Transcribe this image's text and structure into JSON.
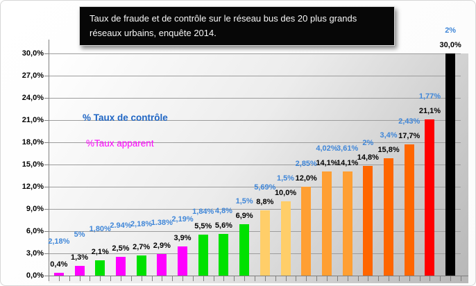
{
  "title": {
    "text": "Taux de fraude et de contrôle sur le réseau bus des 20 plus grands réseaux urbains, enquête 2014."
  },
  "legend": {
    "controle_label": "% Taux de contrôle",
    "apparent_label": "%Taux apparent",
    "controle_color": "#2066C4",
    "apparent_color": "#FF00FF"
  },
  "y_axis": {
    "tick_labels": [
      "30,0%",
      "27,0%",
      "24,0%",
      "21,0%",
      "18,0%",
      "15,0%",
      "12,0%",
      "9,0%",
      "6,0%",
      "3,0%",
      "0,0%"
    ]
  },
  "chart_data": {
    "type": "bar",
    "title": "Taux de fraude et de contrôle sur le réseau bus des 20 plus grands réseaux urbains, enquête 2014.",
    "xlabel": "",
    "ylabel": "",
    "ylim": [
      0,
      30
    ],
    "ytick_step": 3,
    "grid": true,
    "legend_position": "inside-top-left",
    "value_label_color": "#000000",
    "control_label_color": "#3F86D8",
    "series": [
      {
        "name": "%Taux apparent",
        "values": [
          0.4,
          1.3,
          2.1,
          2.5,
          2.7,
          2.9,
          3.9,
          5.5,
          5.6,
          6.9,
          8.8,
          10.0,
          12.0,
          14.1,
          14.1,
          14.8,
          15.8,
          17.7,
          21.1,
          30.0
        ]
      },
      {
        "name": "% Taux de contrôle",
        "values": [
          2.18,
          5,
          1.8,
          2.94,
          2.18,
          1.38,
          2.19,
          1.84,
          4.8,
          1.5,
          5.69,
          1.5,
          2.85,
          4.02,
          3.61,
          2,
          3.4,
          2.43,
          1.77,
          2
        ]
      }
    ],
    "bars": [
      {
        "value": 0.4,
        "value_label": "0,4%",
        "control_label": "2,18%",
        "color": "#FF00FF"
      },
      {
        "value": 1.3,
        "value_label": "1,3%",
        "control_label": "5%",
        "color": "#FF00FF"
      },
      {
        "value": 2.1,
        "value_label": "2,1%",
        "control_label": "1,80%",
        "color": "#00E100"
      },
      {
        "value": 2.5,
        "value_label": "2,5%",
        "control_label": "2.94%",
        "color": "#FF00FF"
      },
      {
        "value": 2.7,
        "value_label": "2,7%",
        "control_label": "2,18%",
        "color": "#00E100"
      },
      {
        "value": 2.9,
        "value_label": "2,9%",
        "control_label": "1.38%",
        "color": "#FF00FF"
      },
      {
        "value": 3.9,
        "value_label": "3,9%",
        "control_label": "2,19%",
        "color": "#FF00FF"
      },
      {
        "value": 5.5,
        "value_label": "5,5%",
        "control_label": "1,84%",
        "color": "#00E100"
      },
      {
        "value": 5.6,
        "value_label": "5,6%",
        "control_label": "4,8%",
        "color": "#00E100"
      },
      {
        "value": 6.9,
        "value_label": "6,9%",
        "control_label": "1,5%",
        "color": "#00E100"
      },
      {
        "value": 8.8,
        "value_label": "8,8%",
        "control_label": "5,69%",
        "color": "#FFCE69"
      },
      {
        "value": 10.0,
        "value_label": "10,0%",
        "control_label": "1,5%",
        "color": "#FFCE69"
      },
      {
        "value": 12.0,
        "value_label": "12,0%",
        "control_label": "2,85%",
        "color": "#FF9F33"
      },
      {
        "value": 14.1,
        "value_label": "14,1%",
        "control_label": "4,02%",
        "color": "#FF9F33"
      },
      {
        "value": 14.1,
        "value_label": "14,1%",
        "control_label": "3,61%",
        "color": "#FF9F33"
      },
      {
        "value": 14.8,
        "value_label": "14,8%",
        "control_label": "2%",
        "color": "#FF6600"
      },
      {
        "value": 15.8,
        "value_label": "15,8%",
        "control_label": "3,4%",
        "color": "#FF6600"
      },
      {
        "value": 17.7,
        "value_label": "17,7%",
        "control_label": "2,43%",
        "color": "#FF6600"
      },
      {
        "value": 21.1,
        "value_label": "21,1%",
        "control_label": "1,77%",
        "color": "#FF0000"
      },
      {
        "value": 30.0,
        "value_label": "30,0%",
        "control_label": "2%",
        "color": "#000000"
      }
    ]
  }
}
